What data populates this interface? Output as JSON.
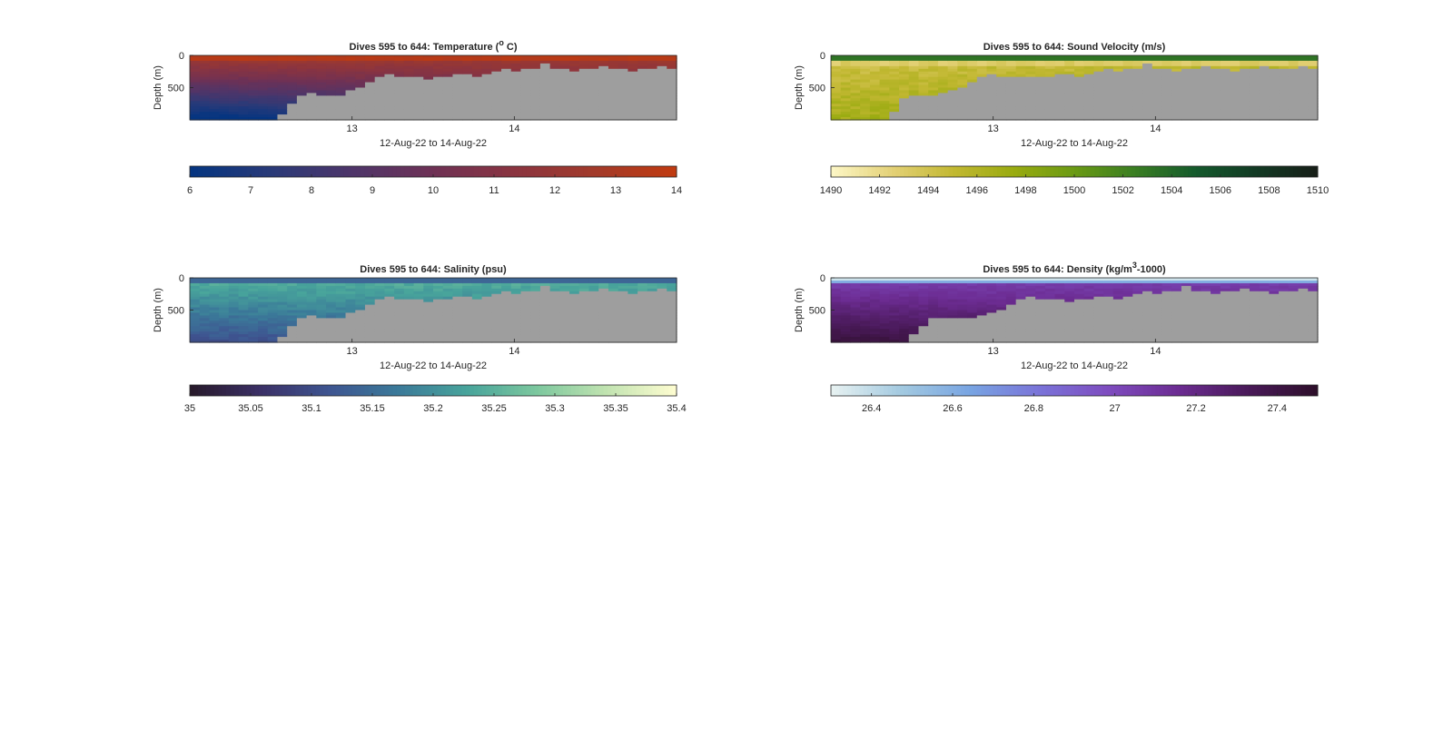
{
  "chart_data": [
    {
      "id": "temperature",
      "type": "heatmap",
      "title_main": "Dives 595 to 644: Temperature (",
      "title_sup": "o",
      "title_tail": " C)",
      "ylabel": "Depth (m)",
      "xlabel": "12-Aug-22 to 14-Aug-22",
      "y_ticks": [
        "0",
        "500"
      ],
      "x_ticks": [
        "13",
        "14"
      ],
      "ylim": [
        0,
        1000
      ],
      "x_range_days": [
        12.0,
        15.0
      ],
      "bottom_depth_profile": [
        960,
        960,
        960,
        960,
        960,
        960,
        960,
        960,
        950,
        920,
        850,
        800,
        790,
        800,
        810,
        800,
        780,
        760,
        720,
        690,
        680,
        690,
        700,
        690,
        710,
        700,
        690,
        680,
        680,
        690,
        670,
        660,
        650,
        660,
        650,
        640,
        620,
        640,
        650,
        660,
        650,
        640,
        630,
        640,
        650,
        660,
        650,
        640,
        630,
        640
      ],
      "colormap": [
        "#053580",
        "#2a3a78",
        "#4e3569",
        "#6e3155",
        "#8a3440",
        "#a23a2a",
        "#c03a10"
      ],
      "colorbar_ticks": [
        "6",
        "7",
        "8",
        "9",
        "10",
        "11",
        "12",
        "13",
        "14"
      ],
      "colorbar_range": [
        6,
        14
      ]
    },
    {
      "id": "sound-velocity",
      "type": "heatmap",
      "title_main": "Dives 595 to 644: Sound Velocity (m/s)",
      "title_sup": "",
      "title_tail": "",
      "ylabel": "Depth (m)",
      "xlabel": "12-Aug-22 to 14-Aug-22",
      "y_ticks": [
        "0",
        "500"
      ],
      "x_ticks": [
        "13",
        "14"
      ],
      "ylim": [
        0,
        1000
      ],
      "x_range_days": [
        12.0,
        15.0
      ],
      "bottom_depth_profile": [
        1000,
        1000,
        1000,
        1000,
        990,
        980,
        900,
        820,
        800,
        800,
        810,
        790,
        780,
        760,
        720,
        690,
        680,
        690,
        700,
        690,
        700,
        700,
        690,
        680,
        680,
        690,
        670,
        660,
        650,
        660,
        650,
        640,
        620,
        640,
        650,
        660,
        650,
        640,
        630,
        640,
        650,
        660,
        650,
        640,
        630,
        640,
        650,
        640,
        630,
        640
      ],
      "colormap": [
        "#fcf6c4",
        "#e3d075",
        "#c2b832",
        "#99ab10",
        "#6a9a14",
        "#3a7e22",
        "#145a2c",
        "#123a24",
        "#171f18"
      ],
      "colorbar_ticks": [
        "1490",
        "1492",
        "1494",
        "1496",
        "1498",
        "1500",
        "1502",
        "1504",
        "1506",
        "1508",
        "1510"
      ],
      "colorbar_range": [
        1490,
        1510
      ]
    },
    {
      "id": "salinity",
      "type": "heatmap",
      "title_main": "Dives 595 to 644: Salinity (psu)",
      "title_sup": "",
      "title_tail": "",
      "ylabel": "Depth (m)",
      "xlabel": "12-Aug-22 to 14-Aug-22",
      "y_ticks": [
        "0",
        "500"
      ],
      "x_ticks": [
        "13",
        "14"
      ],
      "ylim": [
        0,
        1000
      ],
      "x_range_days": [
        12.0,
        15.0
      ],
      "bottom_depth_profile": [
        960,
        960,
        960,
        960,
        960,
        960,
        960,
        960,
        950,
        920,
        850,
        800,
        790,
        800,
        810,
        800,
        780,
        760,
        720,
        690,
        680,
        690,
        700,
        690,
        710,
        700,
        690,
        680,
        680,
        690,
        670,
        660,
        650,
        660,
        650,
        640,
        620,
        640,
        650,
        660,
        650,
        640,
        630,
        640,
        650,
        660,
        650,
        640,
        630,
        640
      ],
      "colormap": [
        "#281a2c",
        "#3b3066",
        "#3e5591",
        "#3b7a99",
        "#48a49b",
        "#7cc79e",
        "#c0e3b0",
        "#fdfcd0"
      ],
      "colorbar_ticks": [
        "35",
        "35.05",
        "35.1",
        "35.15",
        "35.2",
        "35.25",
        "35.3",
        "35.35",
        "35.4"
      ],
      "colorbar_range": [
        35,
        35.4
      ]
    },
    {
      "id": "density",
      "type": "heatmap",
      "title_main": "Dives 595 to 644: Density (kg/m",
      "title_sup": "3",
      "title_tail": "-1000)",
      "ylabel": "Depth (m)",
      "xlabel": "12-Aug-22 to 14-Aug-22",
      "y_ticks": [
        "0",
        "500"
      ],
      "x_ticks": [
        "13",
        "14"
      ],
      "ylim": [
        0,
        1000
      ],
      "x_range_days": [
        12.0,
        15.0
      ],
      "bottom_depth_profile": [
        1000,
        1000,
        1000,
        1000,
        1000,
        1000,
        980,
        950,
        900,
        850,
        810,
        800,
        800,
        810,
        800,
        790,
        780,
        760,
        720,
        690,
        680,
        690,
        700,
        690,
        710,
        700,
        690,
        680,
        680,
        690,
        670,
        660,
        650,
        660,
        650,
        640,
        620,
        640,
        650,
        660,
        650,
        640,
        630,
        640,
        650,
        660,
        650,
        640,
        630,
        640
      ],
      "colormap": [
        "#e6f1f1",
        "#a2c9e0",
        "#78a4e2",
        "#7a73d8",
        "#7e4cbf",
        "#6c2c92",
        "#4a1a5a",
        "#2e0f2b"
      ],
      "colorbar_ticks": [
        "26.4",
        "26.6",
        "26.8",
        "27",
        "27.2",
        "27.4"
      ],
      "colorbar_range": [
        26.3,
        27.5
      ]
    }
  ]
}
